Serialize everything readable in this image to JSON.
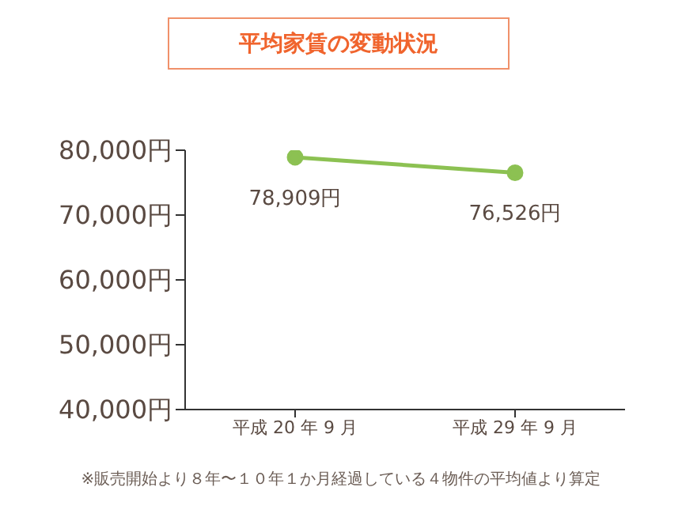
{
  "chart_data": {
    "type": "line",
    "title": "平均家賃の変動状況",
    "categories": [
      "平成 20 年 9 月",
      "平成 29 年 9 月"
    ],
    "series": [
      {
        "color": "#8cc152",
        "values": [
          78909,
          76526
        ],
        "value_labels": [
          "78,909円",
          "76,526円"
        ]
      }
    ],
    "ylim": [
      40000,
      80000
    ],
    "yticks": [
      {
        "value": 40000,
        "label": "40,000円"
      },
      {
        "value": 50000,
        "label": "50,000円"
      },
      {
        "value": 60000,
        "label": "60,000円"
      },
      {
        "value": 70000,
        "label": "70,000円"
      },
      {
        "value": 80000,
        "label": "80,000円"
      }
    ],
    "marker": "circle",
    "annotations": [
      "※販売開始より８年〜１０年１か月経過している４物件の平均値より算定"
    ]
  }
}
